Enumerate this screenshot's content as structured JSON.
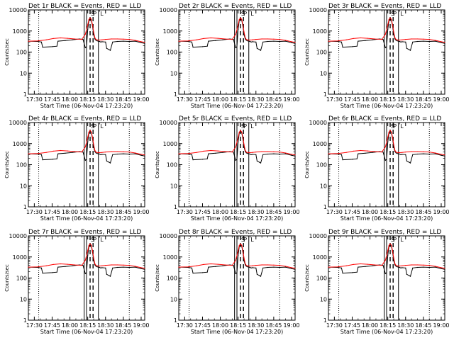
{
  "chart_data": {
    "type": "line",
    "common": {
      "xlabel": "Start Time (06-Nov-04 17:23:20)",
      "ylabel": "Counts/sec",
      "yscale": "log",
      "ylim": [
        1,
        10000
      ],
      "xlim_minutes_after_1700": [
        25,
        123
      ],
      "ytick_labels": [
        "1",
        "10",
        "100",
        "1000",
        "10000"
      ],
      "xticks": [
        "17:30",
        "17:45",
        "18:00",
        "18:15",
        "18:30",
        "18:45",
        "19:00"
      ],
      "xtick_minutes_after_1700": [
        30,
        45,
        60,
        75,
        90,
        105,
        120
      ],
      "series_colors": {
        "events": "#000000",
        "lld": "#ff0000"
      },
      "markers": [
        {
          "label": "",
          "at_minutes_after_1700": 33.7,
          "style": "dotted"
        },
        {
          "label": "",
          "at_minutes_after_1700": 72.0,
          "style": "solid"
        },
        {
          "label": "",
          "at_minutes_after_1700": 74.0,
          "style": "solid"
        },
        {
          "label": "",
          "at_minutes_after_1700": 77.0,
          "style": "dashed"
        },
        {
          "label": "",
          "at_minutes_after_1700": 79.5,
          "style": "dashed"
        },
        {
          "label": "",
          "at_minutes_after_1700": 84.0,
          "style": "solid"
        },
        {
          "label": "",
          "at_minutes_after_1700": 110.0,
          "style": "dotted"
        }
      ],
      "flags": [
        "S",
        "P",
        "L"
      ],
      "flag_minutes_after_1700": [
        77.5,
        79.5,
        85.5
      ]
    },
    "panels": [
      {
        "title": "Det 1r BLACK = Events, RED = LLD"
      },
      {
        "title": "Det 2r BLACK = Events, RED = LLD"
      },
      {
        "title": "Det 3r BLACK = Events, RED = LLD"
      },
      {
        "title": "Det 4r BLACK = Events, RED = LLD"
      },
      {
        "title": "Det 5r BLACK = Events, RED = LLD"
      },
      {
        "title": "Det 6r BLACK = Events, RED = LLD"
      },
      {
        "title": "Det 7r BLACK = Events, RED = LLD"
      },
      {
        "title": "Det 8r BLACK = Events, RED = LLD"
      },
      {
        "title": "Det 9r BLACK = Events, RED = LLD"
      }
    ],
    "series": [
      {
        "name": "Events",
        "color": "#000000",
        "x_minutes_after_1700": [
          25,
          33,
          36,
          37,
          45,
          49,
          50,
          56,
          62,
          68,
          71,
          73,
          74,
          75,
          76,
          77,
          78,
          79,
          80,
          81,
          82,
          83,
          84,
          85,
          86,
          87,
          90,
          91,
          93,
          94,
          96,
          100,
          105,
          110,
          115,
          120,
          123
        ],
        "y": [
          330,
          320,
          300,
          170,
          180,
          190,
          330,
          350,
          380,
          420,
          400,
          160,
          180,
          1200,
          3200,
          3800,
          3300,
          1700,
          700,
          420,
          360,
          340,
          330,
          320,
          300,
          310,
          300,
          150,
          130,
          120,
          300,
          320,
          330,
          320,
          330,
          280,
          260
        ]
      },
      {
        "name": "LLD",
        "color": "#ff0000",
        "x_minutes_after_1700": [
          25,
          33,
          40,
          46,
          52,
          58,
          64,
          70,
          73,
          75,
          76,
          77,
          78,
          79,
          80,
          81,
          82,
          84,
          87,
          90,
          95,
          100,
          105,
          110,
          115,
          120,
          123
        ],
        "y": [
          330,
          340,
          380,
          440,
          470,
          450,
          420,
          400,
          700,
          2000,
          3500,
          4200,
          3600,
          2000,
          900,
          480,
          390,
          370,
          380,
          400,
          420,
          420,
          410,
          400,
          360,
          310,
          290
        ]
      }
    ]
  }
}
